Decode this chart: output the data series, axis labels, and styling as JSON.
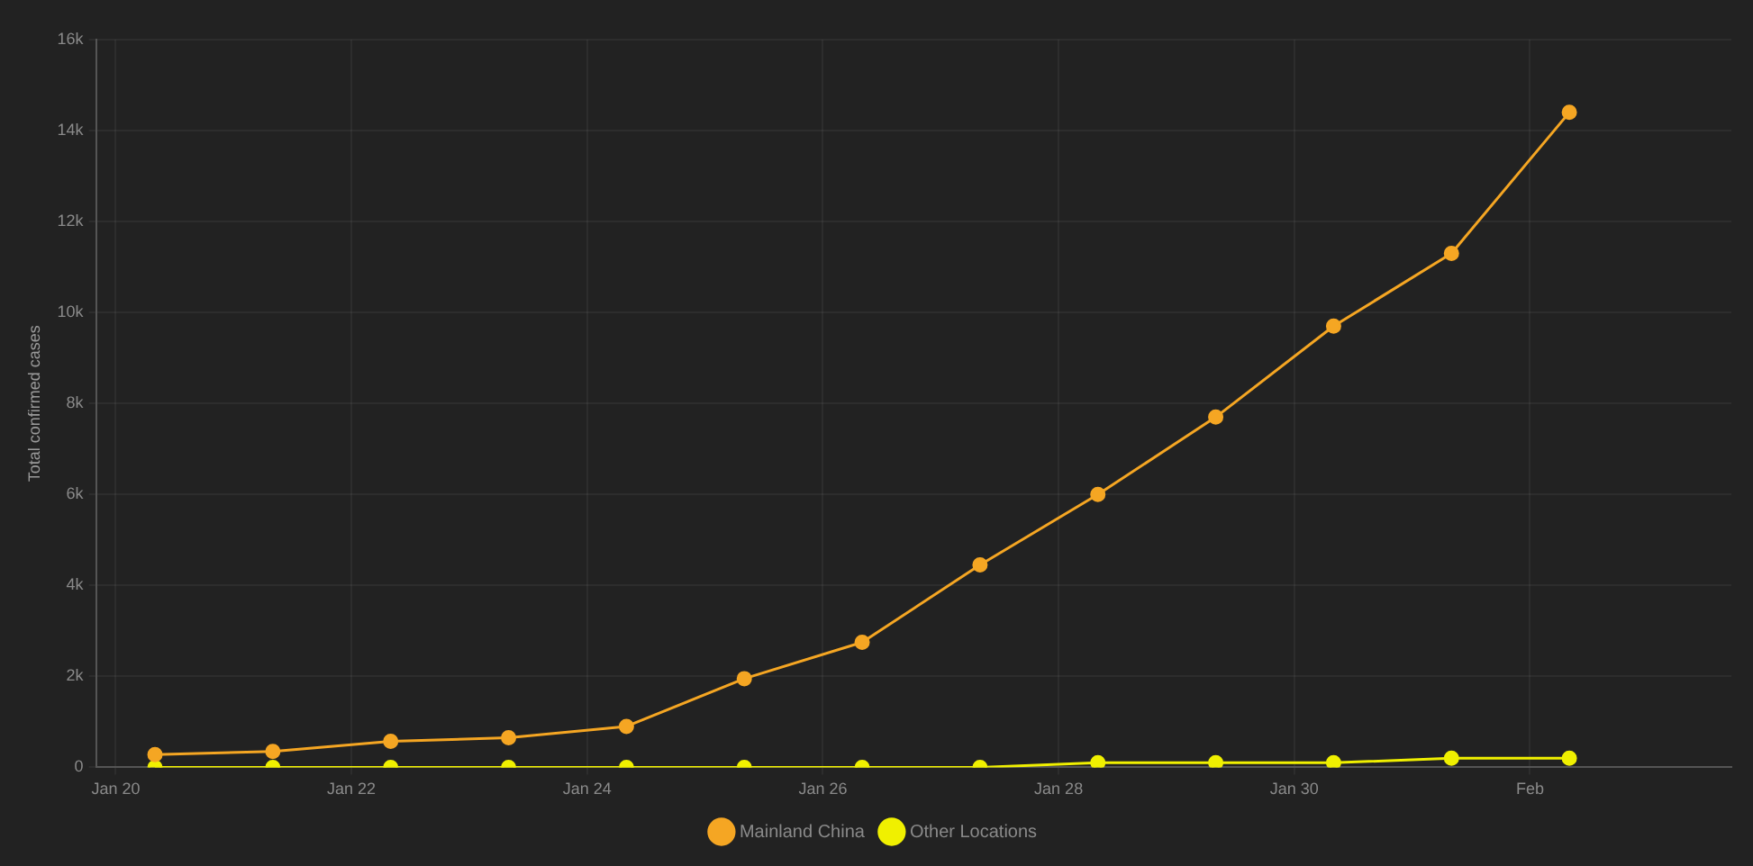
{
  "chart_data": {
    "type": "line",
    "ylabel": "Total confirmed cases",
    "x": [
      "--01-20T08:00",
      "--01-21T08:00",
      "--01-22T08:00",
      "--01-23T08:00",
      "--01-24T08:00",
      "--01-25T08:00",
      "--01-26T08:00",
      "--01-27T08:00",
      "--01-28T08:00",
      "--01-29T08:00",
      "--01-30T08:00",
      "--01-31T08:00",
      "--02-01T08:00"
    ],
    "series": [
      {
        "name": "Mainland China",
        "color": "#f5a623",
        "values": [
          280,
          350,
          570,
          650,
          900,
          1950,
          2750,
          4450,
          6000,
          7700,
          9700,
          11300,
          14400
        ]
      },
      {
        "name": "Other Locations",
        "color": "#f0f000",
        "values": [
          0,
          0,
          0,
          0,
          0,
          0,
          0,
          0,
          100,
          100,
          100,
          200,
          200
        ]
      }
    ],
    "xlim": [
      "--01-19T20:00",
      "--02-02T17:00"
    ],
    "xticks": [
      {
        "value": "--01-20",
        "label": "Jan 20"
      },
      {
        "value": "--01-22",
        "label": "Jan 22"
      },
      {
        "value": "--01-24",
        "label": "Jan 24"
      },
      {
        "value": "--01-26",
        "label": "Jan 26"
      },
      {
        "value": "--01-28",
        "label": "Jan 28"
      },
      {
        "value": "--01-30",
        "label": "Jan 30"
      },
      {
        "value": "--02-01",
        "label": "Feb"
      }
    ],
    "ylim": [
      0,
      16000
    ],
    "yticks": [
      0,
      {
        "value": 2000,
        "label": "2k"
      },
      {
        "value": 4000,
        "label": "4k"
      },
      {
        "value": 6000,
        "label": "6k"
      },
      {
        "value": 8000,
        "label": "8k"
      },
      {
        "value": 10000,
        "label": "10k"
      },
      {
        "value": 12000,
        "label": "12k"
      },
      {
        "value": 14000,
        "label": "14k"
      },
      {
        "value": 16000,
        "label": "16k"
      }
    ],
    "grid": true,
    "legend": "bottom",
    "marker": "circle",
    "line_style": "solid"
  }
}
